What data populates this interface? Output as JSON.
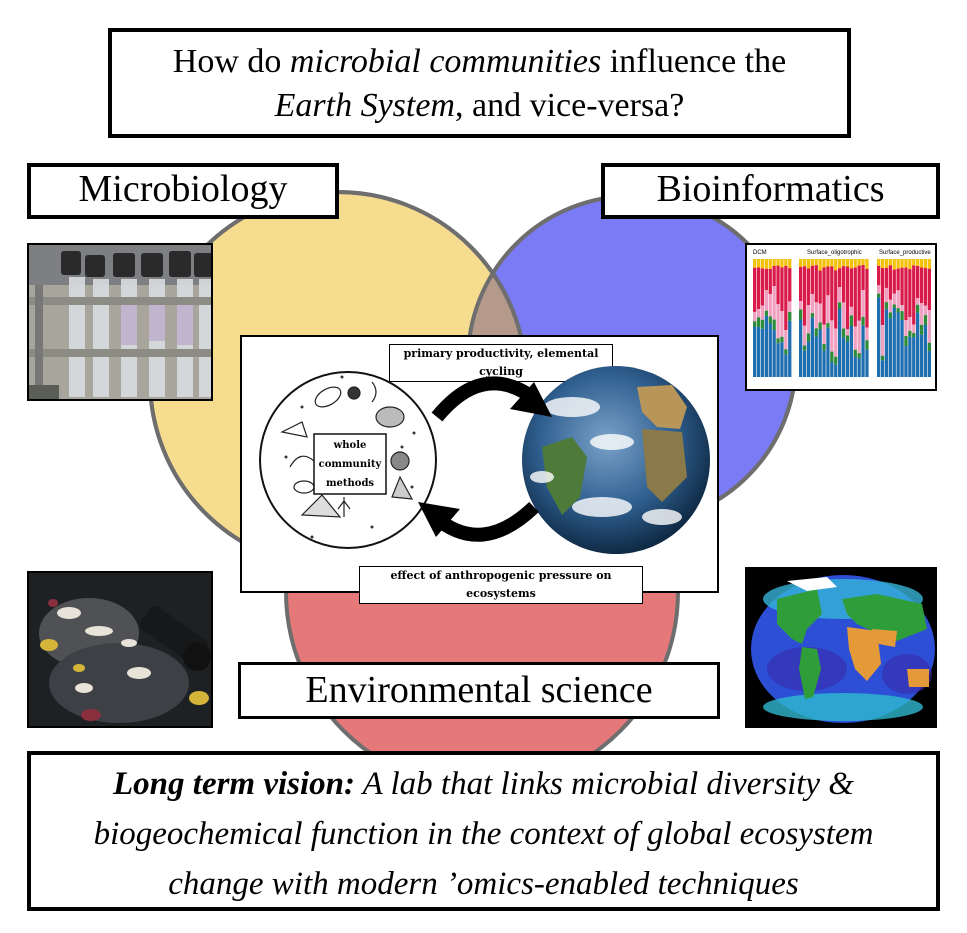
{
  "question": {
    "prefix": "How do ",
    "term1": "microbial communities",
    "middle": " influence the",
    "term2": "Earth System",
    "suffix": ", and vice-versa?"
  },
  "disciplines": {
    "microbiology": "Microbiology",
    "bioinformatics": "Bioinformatics",
    "environmental": "Environmental science"
  },
  "center": {
    "top_label": "primary productivity, elemental cycling",
    "bottom_label": "effect of anthropogenic pressure on ecosystems",
    "community_line1": "whole",
    "community_line2": "community",
    "community_line3": "methods"
  },
  "barchart": {
    "groups": [
      "DCM",
      "Surface_oligotrophic",
      "Surface_productive"
    ]
  },
  "vision": {
    "lead": "Long term vision:",
    "text1": " A lab that links microbial diversity &",
    "text2": "biogeochemical function in the context of global ecosystem",
    "text3": "change with modern ’omics-enabled techniques"
  },
  "colors": {
    "microbiology_circle": "#f5dc8f",
    "bioinformatics_circle": "#7a7bf5",
    "environmental_circle": "#e57878",
    "overlap": "#b59a8c",
    "circle_stroke": "#6e6e6e"
  }
}
